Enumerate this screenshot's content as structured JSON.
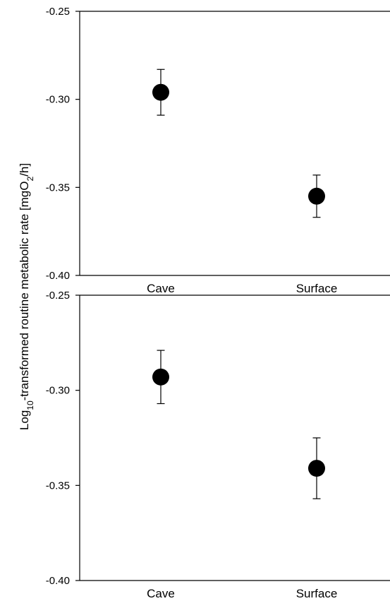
{
  "ylabel": {
    "main": "Log",
    "sub1": "10",
    "mid": "-transformed routine metabolic rate [mgO",
    "sub2": "2",
    "end": "/h]"
  },
  "chart_data": [
    {
      "type": "scatter",
      "categories": [
        "Cave",
        "Surface"
      ],
      "values": [
        -0.296,
        -0.355
      ],
      "error_low": [
        -0.309,
        -0.367
      ],
      "error_high": [
        -0.283,
        -0.343
      ],
      "ylim": [
        -0.4,
        -0.25
      ],
      "yticks": [
        "-0.25",
        "-0.30",
        "-0.35",
        "-0.40"
      ],
      "ytick_values": [
        -0.25,
        -0.3,
        -0.35,
        -0.4
      ],
      "ylabel": "Log10-transformed routine metabolic rate [mgO2/h]",
      "grid": false
    },
    {
      "type": "scatter",
      "categories": [
        "Cave",
        "Surface"
      ],
      "values": [
        -0.293,
        -0.341
      ],
      "error_low": [
        -0.307,
        -0.357
      ],
      "error_high": [
        -0.279,
        -0.325
      ],
      "ylim": [
        -0.4,
        -0.25
      ],
      "yticks": [
        "-0.25",
        "-0.30",
        "-0.35",
        "-0.40"
      ],
      "ytick_values": [
        -0.25,
        -0.3,
        -0.35,
        -0.4
      ],
      "ylabel": "Log10-transformed routine metabolic rate [mgO2/h]",
      "grid": false
    }
  ]
}
